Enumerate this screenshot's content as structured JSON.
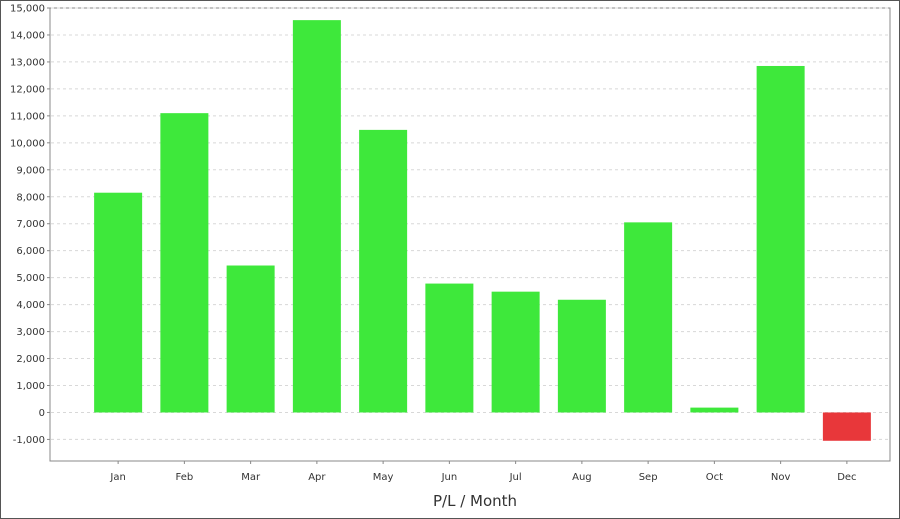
{
  "chart_data": {
    "type": "bar",
    "title": "",
    "xlabel": "P/L / Month",
    "ylabel": "",
    "categories": [
      "Jan",
      "Feb",
      "Mar",
      "Apr",
      "May",
      "Jun",
      "Jul",
      "Aug",
      "Sep",
      "Oct",
      "Nov",
      "Dec"
    ],
    "values": [
      8150,
      11100,
      5450,
      14550,
      10480,
      4780,
      4480,
      4180,
      7050,
      180,
      12850,
      -1050
    ],
    "ylim": [
      -1800,
      15000
    ],
    "yticks": [
      -1000,
      0,
      1000,
      2000,
      3000,
      4000,
      5000,
      6000,
      7000,
      8000,
      9000,
      10000,
      11000,
      12000,
      13000,
      14000,
      15000
    ],
    "ytick_labels": [
      "-1,000",
      "0",
      "1,000",
      "2,000",
      "3,000",
      "4,000",
      "5,000",
      "6,000",
      "7,000",
      "8,000",
      "9,000",
      "10,000",
      "11,000",
      "12,000",
      "13,000",
      "14,000",
      "15,000"
    ],
    "grid": true,
    "legend": "none",
    "colors": {
      "positive": "#3ee83b",
      "negative": "#e8373a",
      "grid": "#d8d8d8",
      "axis": "#888888"
    }
  }
}
